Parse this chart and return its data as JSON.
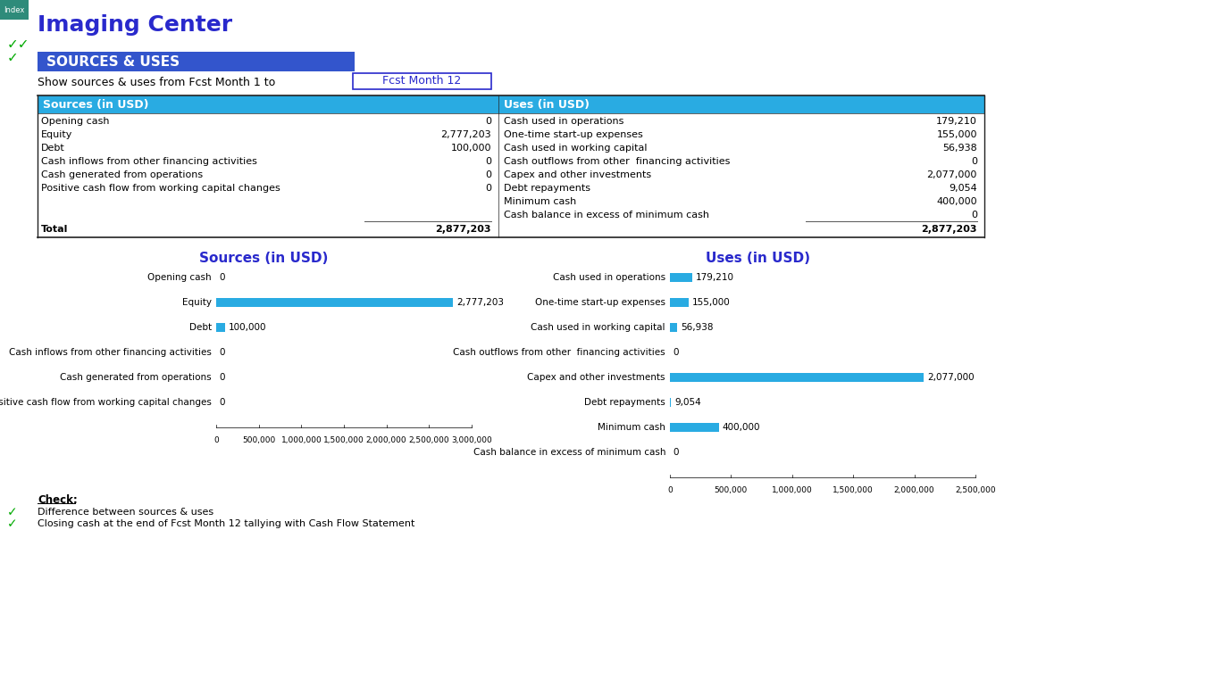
{
  "title": "Imaging Center",
  "section_title": "SOURCES & USES",
  "filter_label": "Show sources & uses from Fcst Month 1 to",
  "filter_value": "Fcst Month 12",
  "table_header_bg": "#29ABE2",
  "table_header_color": "#FFFFFF",
  "section_bg": "#3355CC",
  "section_color": "#FFFFFF",
  "title_color": "#2929CC",
  "index_bg": "#2E8B7A",
  "sources_labels": [
    "Opening cash",
    "Equity",
    "Debt",
    "Cash inflows from other financing activities",
    "Cash generated from operations",
    "Positive cash flow from working capital changes"
  ],
  "sources_values": [
    0,
    2777203,
    100000,
    0,
    0,
    0
  ],
  "sources_total": 2877203,
  "uses_labels": [
    "Cash used in operations",
    "One-time start-up expenses",
    "Cash used in working capital",
    "Cash outflows from other  financing activities",
    "Capex and other investments",
    "Debt repayments",
    "Minimum cash",
    "Cash balance in excess of minimum cash"
  ],
  "uses_values": [
    179210,
    155000,
    56938,
    0,
    2077000,
    9054,
    400000,
    0
  ],
  "uses_total": 2877203,
  "chart_sources_title": "Sources (in USD)",
  "chart_uses_title": "Uses (in USD)",
  "bar_color": "#29ABE2",
  "chart_title_color": "#2929CC",
  "check_label": "Check:",
  "check_items": [
    "Difference between sources & uses",
    "Closing cash at the end of Fcst Month 12 tallying with Cash Flow Statement"
  ],
  "green_check_color": "#00AA00"
}
